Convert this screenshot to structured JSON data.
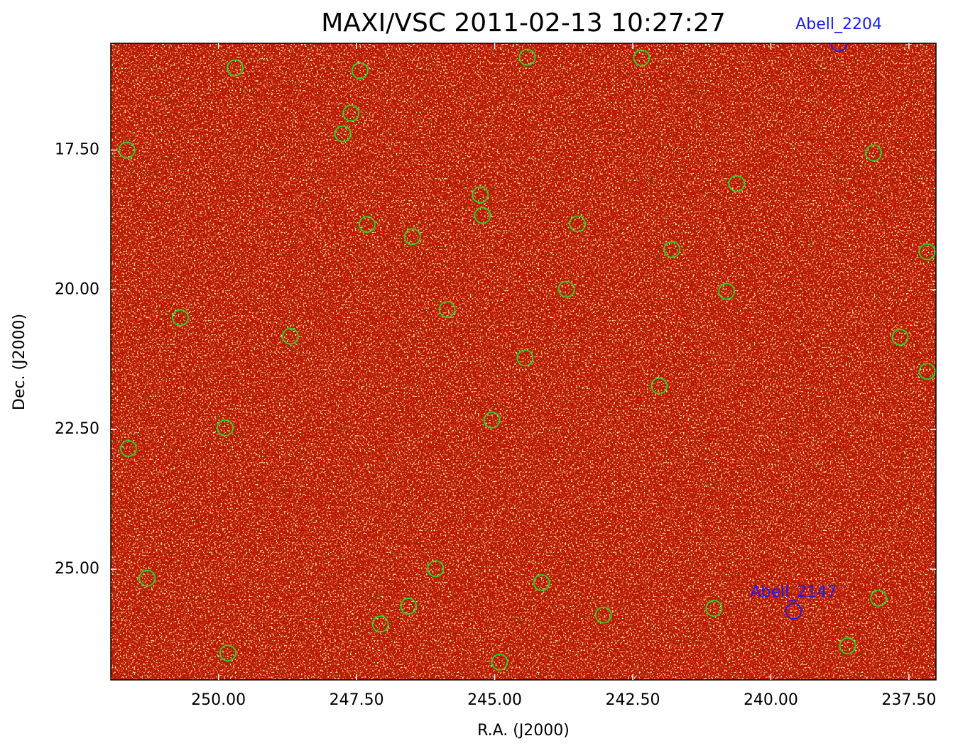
{
  "chart_data": {
    "type": "scatter",
    "title": "MAXI/VSC 2011-02-13 10:27:27",
    "xlabel": "R.A. (J2000)",
    "ylabel": "Dec. (J2000)",
    "xlim": [
      251.95,
      237.01
    ],
    "ylim": [
      26.98,
      15.59
    ],
    "xticks": [
      {
        "value": 250,
        "label": "250.00"
      },
      {
        "value": 247.5,
        "label": "247.50"
      },
      {
        "value": 245,
        "label": "245.00"
      },
      {
        "value": 242.5,
        "label": "242.50"
      },
      {
        "value": 240,
        "label": "240.00"
      },
      {
        "value": 237.5,
        "label": "237.50"
      }
    ],
    "yticks": [
      {
        "value": 17.5,
        "label": "17.50"
      },
      {
        "value": 20,
        "label": "20.00"
      },
      {
        "value": 22.5,
        "label": "22.50"
      },
      {
        "value": 25,
        "label": "25.00"
      }
    ],
    "series": [
      {
        "color": "#22dd22",
        "x": [
          249.7,
          247.44,
          244.41,
          242.34,
          247.6,
          247.75,
          251.66,
          238.14,
          240.62,
          245.26,
          245.22,
          247.31,
          243.5,
          246.49,
          241.79,
          237.17,
          243.7,
          240.8,
          245.86,
          250.69,
          248.7,
          237.66,
          244.45,
          237.17,
          242.02,
          245.05,
          249.88,
          251.63,
          246.07,
          251.29,
          244.15,
          238.05,
          246.56,
          241.03,
          243.03,
          247.07,
          238.61,
          249.83,
          244.91
        ],
        "y": [
          16.03,
          16.08,
          15.84,
          15.85,
          16.84,
          17.21,
          17.5,
          17.55,
          18.1,
          18.3,
          18.67,
          18.83,
          18.82,
          19.05,
          19.28,
          19.32,
          19.99,
          20.03,
          20.35,
          20.5,
          20.83,
          20.85,
          21.22,
          21.46,
          21.72,
          22.33,
          22.47,
          22.84,
          24.99,
          25.16,
          25.24,
          25.52,
          25.66,
          25.7,
          25.82,
          25.98,
          26.37,
          26.5,
          26.66
        ]
      },
      {
        "color": "#1a1aee",
        "x": [
          238.77,
          239.59
        ],
        "y": [
          15.59,
          25.75
        ],
        "labels": [
          "Abell_2204",
          "Abell_2147"
        ]
      }
    ]
  }
}
